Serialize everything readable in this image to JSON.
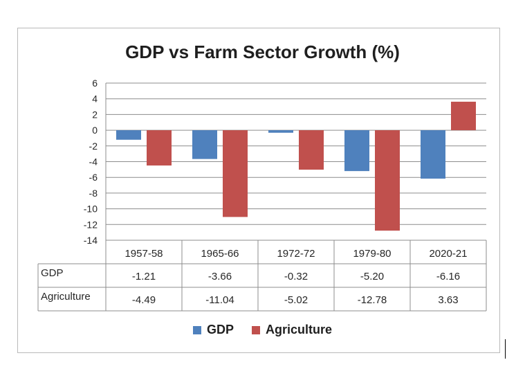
{
  "chart_data": {
    "type": "bar",
    "title": "GDP vs Farm Sector Growth (%)",
    "categories": [
      "1957-58",
      "1965-66",
      "1972-72",
      "1979-80",
      "2020-21"
    ],
    "series": [
      {
        "name": "GDP",
        "color": "#4f81bd",
        "values": [
          -1.21,
          -3.66,
          -0.32,
          -5.2,
          -6.16
        ],
        "labels": [
          "-1.21",
          "-3.66",
          "-0.32",
          "-5.20",
          "-6.16"
        ]
      },
      {
        "name": "Agriculture",
        "color": "#c0504d",
        "values": [
          -4.49,
          -11.04,
          -5.02,
          -12.78,
          3.63
        ],
        "labels": [
          "-4.49",
          "-11.04",
          "-5.02",
          "-12.78",
          "3.63"
        ]
      }
    ],
    "ylim": [
      -14,
      6
    ],
    "yticks": [
      6,
      4,
      2,
      0,
      -2,
      -4,
      -6,
      -8,
      -10,
      -12,
      -14
    ],
    "grid": true,
    "legend": "bottom",
    "data_table": true
  }
}
